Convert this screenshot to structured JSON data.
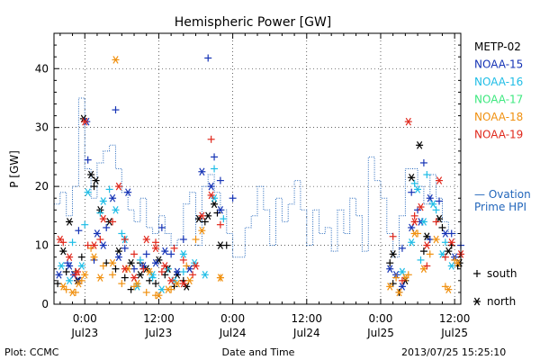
{
  "chart_data": {
    "type": "scatter",
    "title": "Hemispheric Power [GW]",
    "ylabel": "P [GW]",
    "xlabel": "Date and Time",
    "x_unit": "hours from 2013-07-22 00:00 UT",
    "xlim": [
      19,
      85
    ],
    "ylim": [
      0,
      46
    ],
    "yticks": [
      0,
      10,
      20,
      30,
      40
    ],
    "xticks": [
      {
        "x": 24,
        "time": "0:00",
        "date": "Jul23"
      },
      {
        "x": 36,
        "time": "12:00",
        "date": "Jul23"
      },
      {
        "x": 48,
        "time": "0:00",
        "date": "Jul24"
      },
      {
        "x": 60,
        "time": "12:00",
        "date": "Jul24"
      },
      {
        "x": 72,
        "time": "0:00",
        "date": "Jul25"
      },
      {
        "x": 84,
        "time": "12:00",
        "date": "Jul25"
      }
    ],
    "series": [
      {
        "name": "METP-02",
        "color": "#000000",
        "points": {
          "south": [
            [
              19.6,
              3.5
            ],
            [
              21.0,
              5.5
            ],
            [
              22.5,
              5.5
            ],
            [
              23.5,
              8.0
            ],
            [
              25.5,
              20.0
            ],
            [
              27.5,
              7.0
            ],
            [
              29.0,
              6.0
            ],
            [
              30.5,
              4.5
            ],
            [
              31.5,
              2.5
            ],
            [
              33.0,
              7.0
            ],
            [
              34.5,
              4.0
            ],
            [
              35.5,
              3.5
            ],
            [
              37.0,
              5.0
            ],
            [
              38.5,
              3.0
            ],
            [
              40.0,
              4.0
            ],
            [
              43.5,
              14.0
            ],
            [
              45.5,
              15.5
            ],
            [
              47.0,
              10.0
            ],
            [
              73.5,
              7.0
            ],
            [
              74.0,
              3.5
            ],
            [
              75.0,
              2.0
            ],
            [
              79.0,
              9.0
            ],
            [
              82.0,
              13.0
            ],
            [
              83.5,
              10.0
            ],
            [
              84.5,
              6.5
            ]
          ],
          "north": [
            [
              20.5,
              9.0
            ],
            [
              21.5,
              14.0
            ],
            [
              22.8,
              4.0
            ],
            [
              23.8,
              31.5
            ],
            [
              25.0,
              22.0
            ],
            [
              25.8,
              21.0
            ],
            [
              26.5,
              16.0
            ],
            [
              28.0,
              14.0
            ],
            [
              29.5,
              9.0
            ],
            [
              31.5,
              7.0
            ],
            [
              33.0,
              5.0
            ],
            [
              34.0,
              6.0
            ],
            [
              36.0,
              7.5
            ],
            [
              37.5,
              6.0
            ],
            [
              39.0,
              5.0
            ],
            [
              40.5,
              3.0
            ],
            [
              42.5,
              14.5
            ],
            [
              44.0,
              15.0
            ],
            [
              45.0,
              17.0
            ],
            [
              46.0,
              10.0
            ],
            [
              74.0,
              8.5
            ],
            [
              76.0,
              4.0
            ],
            [
              77.0,
              21.5
            ],
            [
              78.3,
              27.0
            ],
            [
              79.5,
              11.5
            ],
            [
              81.5,
              14.5
            ],
            [
              83.0,
              9.0
            ],
            [
              84.8,
              7.0
            ]
          ]
        }
      },
      {
        "name": "NOAA-15",
        "color": "#1533b5",
        "points": {
          "south": [
            [
              21.2,
              7.0
            ],
            [
              23.0,
              12.5
            ],
            [
              24.5,
              24.5
            ],
            [
              25.5,
              7.5
            ],
            [
              27.5,
              13.0
            ],
            [
              29.0,
              33.0
            ],
            [
              30.5,
              9.5
            ],
            [
              32.0,
              6.0
            ],
            [
              34.0,
              8.5
            ],
            [
              36.5,
              13.0
            ],
            [
              38.0,
              8.5
            ],
            [
              40.0,
              11.0
            ],
            [
              44.0,
              41.8
            ],
            [
              45.0,
              25.0
            ],
            [
              46.0,
              21.0
            ],
            [
              48.0,
              18.0
            ],
            [
              75.5,
              9.5
            ],
            [
              77.0,
              19.0
            ],
            [
              78.0,
              16.0
            ],
            [
              79.0,
              24.0
            ],
            [
              80.0,
              11.0
            ],
            [
              81.5,
              17.5
            ],
            [
              83.5,
              12.0
            ],
            [
              85.0,
              10.0
            ]
          ],
          "north": [
            [
              19.8,
              5.0
            ],
            [
              21.5,
              6.5
            ],
            [
              22.2,
              5.0
            ],
            [
              23.0,
              4.0
            ],
            [
              24.3,
              31.0
            ],
            [
              26.0,
              12.0
            ],
            [
              27.0,
              10.0
            ],
            [
              28.5,
              18.0
            ],
            [
              29.5,
              8.0
            ],
            [
              31.0,
              19.0
            ],
            [
              33.5,
              6.5
            ],
            [
              35.5,
              7.0
            ],
            [
              37.0,
              9.0
            ],
            [
              39.0,
              5.5
            ],
            [
              41.0,
              6.0
            ],
            [
              43.0,
              22.5
            ],
            [
              44.5,
              20.0
            ],
            [
              46.0,
              16.0
            ],
            [
              73.5,
              6.0
            ],
            [
              74.5,
              5.0
            ],
            [
              75.5,
              3.0
            ],
            [
              77.0,
              13.0
            ],
            [
              78.5,
              14.0
            ],
            [
              80.0,
              18.0
            ],
            [
              82.5,
              12.0
            ],
            [
              84.0,
              8.0
            ]
          ]
        }
      },
      {
        "name": "NOAA-16",
        "color": "#1fbde6",
        "points": {
          "south": [
            [
              22.0,
              10.5
            ],
            [
              24.0,
              13.5
            ],
            [
              26.5,
              15.5
            ],
            [
              28.0,
              19.5
            ],
            [
              30.0,
              12.0
            ],
            [
              33.0,
              7.5
            ],
            [
              35.0,
              4.5
            ],
            [
              37.5,
              6.0
            ],
            [
              40.0,
              5.5
            ],
            [
              45.0,
              23.0
            ],
            [
              46.5,
              14.5
            ],
            [
              77.5,
              20.5
            ],
            [
              78.5,
              7.5
            ],
            [
              79.5,
              22.0
            ],
            [
              81.0,
              16.0
            ],
            [
              82.5,
              10.5
            ]
          ],
          "north": [
            [
              20.2,
              6.5
            ],
            [
              21.5,
              4.0
            ],
            [
              23.5,
              6.5
            ],
            [
              24.5,
              19.0
            ],
            [
              27.0,
              17.5
            ],
            [
              29.0,
              16.0
            ],
            [
              30.5,
              11.0
            ],
            [
              32.5,
              3.0
            ],
            [
              35.0,
              5.0
            ],
            [
              36.5,
              2.5
            ],
            [
              38.5,
              4.0
            ],
            [
              40.0,
              8.5
            ],
            [
              41.8,
              7.0
            ],
            [
              43.5,
              5.0
            ],
            [
              45.0,
              18.0
            ],
            [
              75.5,
              5.5
            ],
            [
              77.0,
              10.5
            ],
            [
              78.0,
              19.5
            ],
            [
              79.0,
              14.0
            ],
            [
              80.5,
              17.0
            ],
            [
              82.0,
              8.5
            ],
            [
              83.5,
              6.5
            ]
          ]
        }
      },
      {
        "name": "NOAA-17",
        "color": "#3ee87f",
        "points": {
          "south": [],
          "north": []
        }
      },
      {
        "name": "NOAA-18",
        "color": "#f0900f",
        "points": {
          "south": [
            [
              21.0,
              2.5
            ],
            [
              22.5,
              2.0
            ],
            [
              23.5,
              4.0
            ],
            [
              25.0,
              9.5
            ],
            [
              27.0,
              6.5
            ],
            [
              28.5,
              5.0
            ],
            [
              30.0,
              3.5
            ],
            [
              32.0,
              3.0
            ],
            [
              34.0,
              2.0
            ],
            [
              35.5,
              1.5
            ],
            [
              38.0,
              2.5
            ],
            [
              40.5,
              6.5
            ],
            [
              42.0,
              11.0
            ],
            [
              46.0,
              4.5
            ],
            [
              74.5,
              4.5
            ],
            [
              76.5,
              5.0
            ],
            [
              78.0,
              12.0
            ],
            [
              80.0,
              8.5
            ],
            [
              82.5,
              3.0
            ],
            [
              84.0,
              7.5
            ]
          ],
          "north": [
            [
              20.5,
              3.0
            ],
            [
              22.0,
              2.0
            ],
            [
              23.0,
              3.5
            ],
            [
              24.0,
              5.0
            ],
            [
              25.5,
              8.0
            ],
            [
              26.5,
              4.5
            ],
            [
              28.5,
              7.0
            ],
            [
              29.0,
              41.5
            ],
            [
              31.0,
              6.0
            ],
            [
              32.5,
              3.5
            ],
            [
              34.5,
              5.5
            ],
            [
              36.0,
              1.5
            ],
            [
              37.5,
              2.5
            ],
            [
              39.0,
              3.5
            ],
            [
              41.0,
              4.0
            ],
            [
              43.0,
              12.5
            ],
            [
              46.0,
              4.5
            ],
            [
              73.5,
              3.0
            ],
            [
              75.0,
              2.0
            ],
            [
              76.0,
              4.5
            ],
            [
              77.5,
              12.0
            ],
            [
              79.0,
              6.0
            ],
            [
              81.0,
              11.0
            ],
            [
              83.0,
              2.5
            ],
            [
              84.5,
              7.0
            ]
          ]
        }
      },
      {
        "name": "NOAA-19",
        "color": "#e0281c",
        "points": {
          "south": [
            [
              20.5,
              10.5
            ],
            [
              22.5,
              5.0
            ],
            [
              24.5,
              10.0
            ],
            [
              26.5,
              11.0
            ],
            [
              28.5,
              14.0
            ],
            [
              30.5,
              11.0
            ],
            [
              32.0,
              8.5
            ],
            [
              33.5,
              6.0
            ],
            [
              35.5,
              10.5
            ],
            [
              36.5,
              5.5
            ],
            [
              38.5,
              9.5
            ],
            [
              40.0,
              7.5
            ],
            [
              41.5,
              5.0
            ],
            [
              44.5,
              28.0
            ],
            [
              46.0,
              13.5
            ],
            [
              74.0,
              11.5
            ],
            [
              75.5,
              4.0
            ],
            [
              77.5,
              15.0
            ],
            [
              79.5,
              6.5
            ],
            [
              81.0,
              14.0
            ],
            [
              82.5,
              8.0
            ]
          ],
          "north": [
            [
              20.0,
              11.0
            ],
            [
              21.5,
              8.0
            ],
            [
              22.8,
              5.5
            ],
            [
              24.0,
              31.0
            ],
            [
              25.5,
              10.0
            ],
            [
              27.0,
              14.5
            ],
            [
              29.5,
              20.0
            ],
            [
              30.5,
              6.0
            ],
            [
              32.0,
              4.5
            ],
            [
              34.0,
              11.0
            ],
            [
              35.5,
              9.5
            ],
            [
              37.0,
              6.5
            ],
            [
              38.0,
              4.0
            ],
            [
              40.0,
              3.5
            ],
            [
              42.0,
              6.5
            ],
            [
              43.0,
              15.0
            ],
            [
              44.5,
              18.5
            ],
            [
              76.5,
              31.0
            ],
            [
              77.5,
              14.0
            ],
            [
              78.5,
              16.5
            ],
            [
              79.5,
              10.0
            ],
            [
              81.5,
              21.0
            ],
            [
              83.5,
              10.5
            ],
            [
              85.0,
              8.5
            ]
          ]
        }
      }
    ],
    "ovation": {
      "name": "Ovation Prime HPI",
      "legend_text": "— Ovation",
      "legend_text2": "Prime HPI",
      "color": "#2266bb",
      "x": [
        19,
        20,
        21,
        22,
        23,
        24,
        25,
        26,
        27,
        28,
        29,
        30,
        31,
        32,
        33,
        34,
        35,
        36,
        37,
        38,
        39,
        40,
        41,
        42,
        43,
        44,
        45,
        46,
        47,
        48,
        49,
        50,
        51,
        52,
        53,
        54,
        55,
        56,
        57,
        58,
        59,
        60,
        61,
        62,
        63,
        64,
        65,
        66,
        67,
        68,
        69,
        70,
        71,
        72,
        73,
        74,
        75,
        76,
        77,
        78,
        79,
        80,
        81,
        82,
        83,
        84,
        85
      ],
      "y": [
        17,
        19,
        15,
        20,
        35,
        23,
        18,
        24,
        26,
        27,
        23,
        19,
        16,
        14,
        18,
        13,
        12,
        15,
        12,
        10,
        11,
        17,
        19,
        10,
        20,
        22,
        19,
        16,
        12,
        8,
        8,
        13,
        15,
        20,
        16,
        10,
        18,
        14,
        17,
        21,
        16,
        10,
        16,
        12,
        13,
        9,
        16,
        12,
        18,
        15,
        9,
        25,
        21,
        18,
        12,
        8,
        15,
        23,
        23,
        20,
        17,
        22,
        18,
        14,
        12,
        12,
        20
      ]
    },
    "legend_markers": [
      {
        "symbol": "+",
        "text": "south"
      },
      {
        "symbol": "*",
        "text": "north"
      }
    ],
    "grid": true
  },
  "footer": {
    "plot_credit": "Plot: CCMC",
    "xlabel": "Date and Time",
    "timestamp": "2013/07/25 15:25:10"
  }
}
